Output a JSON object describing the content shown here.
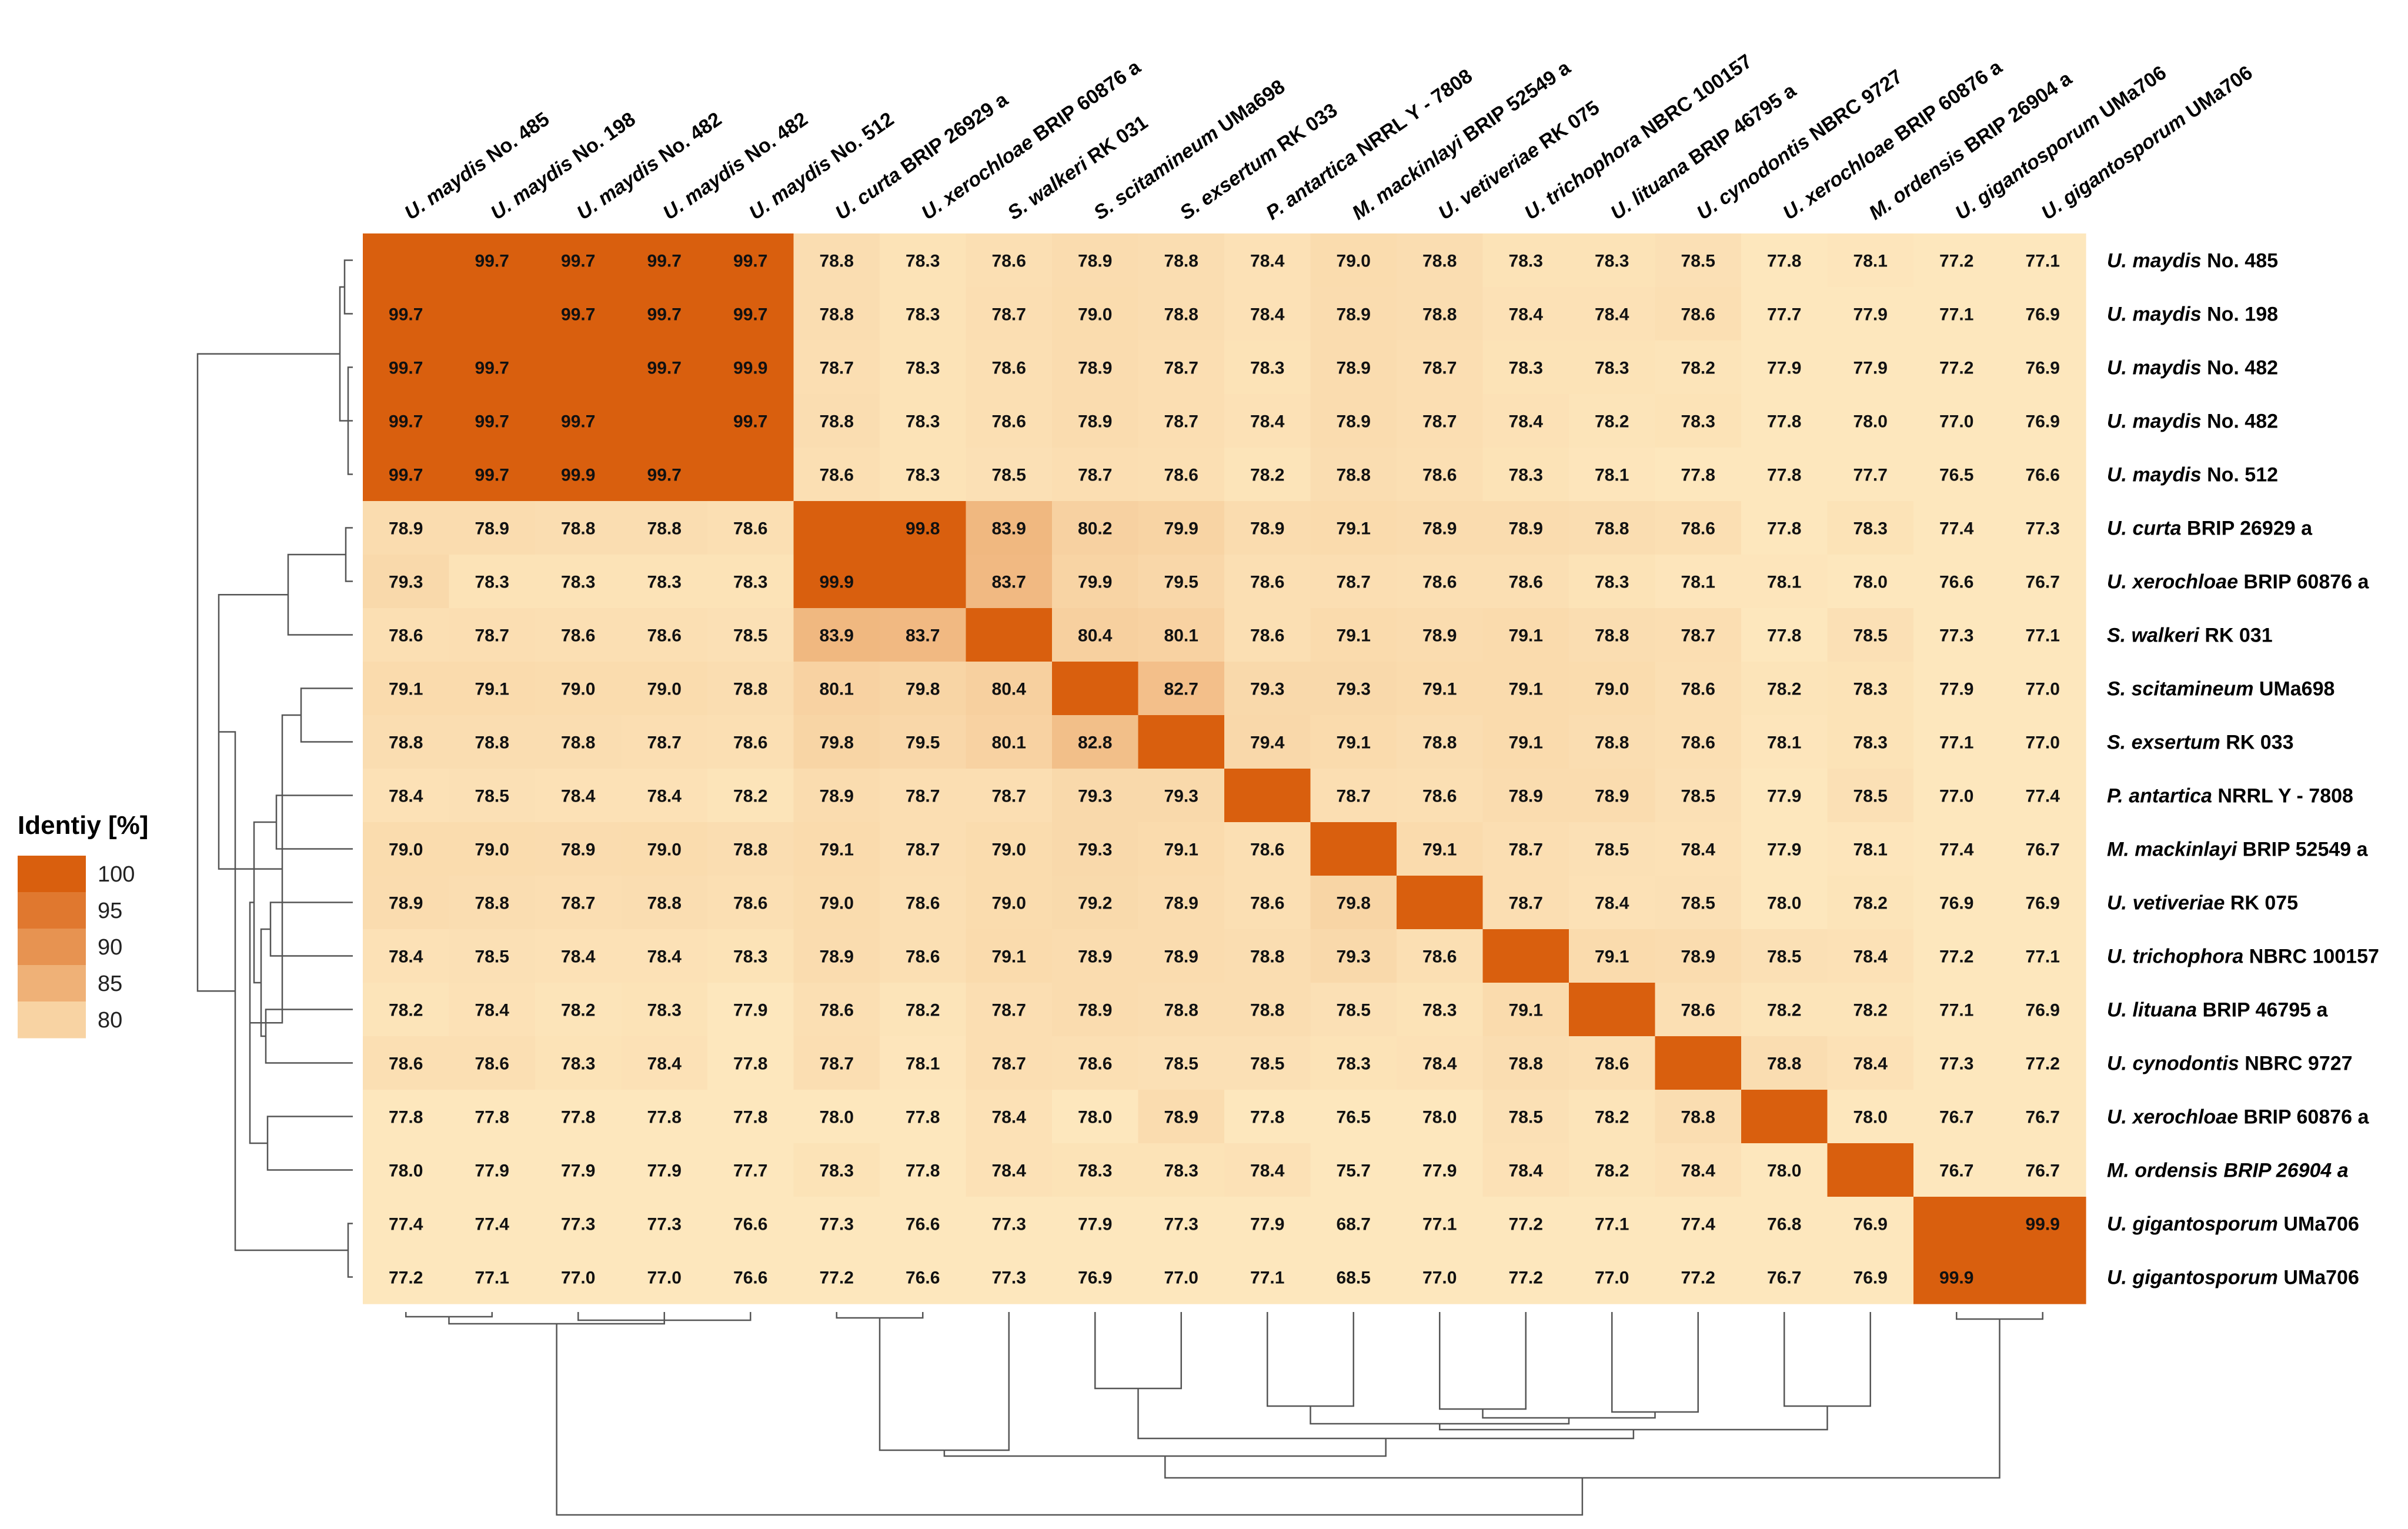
{
  "chart_data": {
    "type": "heatmap",
    "title": "",
    "colors": {
      "low": "#fde7bd",
      "high": "#d95f0e",
      "dendrogram": "#555555"
    },
    "legend": {
      "title": "Identiy [%]",
      "ticks": [
        100,
        95,
        90,
        85,
        80
      ],
      "position": "left"
    },
    "rows": [
      {
        "italic": "U. maydis",
        "rest": " No. 485"
      },
      {
        "italic": "U. maydis",
        "rest": " No. 198"
      },
      {
        "italic": "U. maydis",
        "rest": " No. 482"
      },
      {
        "italic": "U. maydis",
        "rest": " No. 482"
      },
      {
        "italic": "U. maydis",
        "rest": " No. 512"
      },
      {
        "italic": "U. curta",
        "rest": " BRIP 26929 a"
      },
      {
        "italic": "U. xerochloae",
        "rest": " BRIP 60876 a"
      },
      {
        "italic": "S. walkeri",
        "rest": " RK 031"
      },
      {
        "italic": "S. scitamineum",
        "rest": " UMa698"
      },
      {
        "italic": "S. exsertum",
        "rest": " RK 033"
      },
      {
        "italic": "P. antartica",
        "rest": " NRRL Y - 7808"
      },
      {
        "italic": "M. mackinlayi",
        "rest": " BRIP 52549 a"
      },
      {
        "italic": "U. vetiveriae",
        "rest": " RK 075"
      },
      {
        "italic": "U. trichophora",
        "rest": " NBRC 100157"
      },
      {
        "italic": "U. lituana",
        "rest": " BRIP 46795 a"
      },
      {
        "italic": "U. cynodontis",
        "rest": " NBRC 9727"
      },
      {
        "italic": "U. xerochloae",
        "rest": " BRIP 60876 a"
      },
      {
        "italic": "M. ordensis BRIP 26904 a",
        "rest": ""
      },
      {
        "italic": "U. gigantosporum",
        "rest": " UMa706"
      },
      {
        "italic": "U. gigantosporum",
        "rest": " UMa706"
      }
    ],
    "columns": [
      {
        "italic": "U. maydis",
        "rest": " No. 485"
      },
      {
        "italic": "U. maydis",
        "rest": " No. 198"
      },
      {
        "italic": "U. maydis",
        "rest": " No. 482"
      },
      {
        "italic": "U. maydis",
        "rest": " No. 482"
      },
      {
        "italic": "U. maydis",
        "rest": " No. 512"
      },
      {
        "italic": "U. curta",
        "rest": " BRIP 26929 a"
      },
      {
        "italic": "U. xerochloae",
        "rest": " BRIP 60876 a"
      },
      {
        "italic": "S. walkeri",
        "rest": " RK 031"
      },
      {
        "italic": "S. scitamineum",
        "rest": " UMa698"
      },
      {
        "italic": "S. exsertum",
        "rest": " RK 033"
      },
      {
        "italic": "P. antartica",
        "rest": " NRRL Y - 7808"
      },
      {
        "italic": "M. mackinlayi",
        "rest": " BRIP 52549 a"
      },
      {
        "italic": "U. vetiveriae",
        "rest": " RK 075"
      },
      {
        "italic": "U. trichophora",
        "rest": " NBRC 100157"
      },
      {
        "italic": "U. lituana",
        "rest": " BRIP 46795 a"
      },
      {
        "italic": "U. cynodontis",
        "rest": " NBRC 9727"
      },
      {
        "italic": "U. xerochloae",
        "rest": " BRIP 60876 a"
      },
      {
        "italic": "M. ordensis",
        "rest": " BRIP 26904 a"
      },
      {
        "italic": "U. gigantosporum",
        "rest": " UMa706"
      },
      {
        "italic": "U. gigantosporum",
        "rest": " UMa706"
      }
    ],
    "values": [
      [
        null,
        99.7,
        99.7,
        99.7,
        99.7,
        78.8,
        78.3,
        78.6,
        78.9,
        78.8,
        78.4,
        79.0,
        78.8,
        78.3,
        78.3,
        78.5,
        77.8,
        78.1,
        77.2,
        77.1
      ],
      [
        99.7,
        null,
        99.7,
        99.7,
        99.7,
        78.8,
        78.3,
        78.7,
        79.0,
        78.8,
        78.4,
        78.9,
        78.8,
        78.4,
        78.4,
        78.6,
        77.7,
        77.9,
        77.1,
        76.9
      ],
      [
        99.7,
        99.7,
        null,
        99.7,
        99.9,
        78.7,
        78.3,
        78.6,
        78.9,
        78.7,
        78.3,
        78.9,
        78.7,
        78.3,
        78.3,
        78.2,
        77.9,
        77.9,
        77.2,
        76.9
      ],
      [
        99.7,
        99.7,
        99.7,
        null,
        99.7,
        78.8,
        78.3,
        78.6,
        78.9,
        78.7,
        78.4,
        78.9,
        78.7,
        78.4,
        78.2,
        78.3,
        77.8,
        78.0,
        77.0,
        76.9
      ],
      [
        99.7,
        99.7,
        99.9,
        99.7,
        null,
        78.6,
        78.3,
        78.5,
        78.7,
        78.6,
        78.2,
        78.8,
        78.6,
        78.3,
        78.1,
        77.8,
        77.8,
        77.7,
        76.5,
        76.6
      ],
      [
        78.9,
        78.9,
        78.8,
        78.8,
        78.6,
        null,
        99.8,
        83.9,
        80.2,
        79.9,
        78.9,
        79.1,
        78.9,
        78.9,
        78.8,
        78.6,
        77.8,
        78.3,
        77.4,
        77.3
      ],
      [
        79.3,
        78.3,
        78.3,
        78.3,
        78.3,
        99.9,
        null,
        83.7,
        79.9,
        79.5,
        78.6,
        78.7,
        78.6,
        78.6,
        78.3,
        78.1,
        78.1,
        78.0,
        76.6,
        76.7
      ],
      [
        78.6,
        78.7,
        78.6,
        78.6,
        78.5,
        83.9,
        83.7,
        null,
        80.4,
        80.1,
        78.6,
        79.1,
        78.9,
        79.1,
        78.8,
        78.7,
        77.8,
        78.5,
        77.3,
        77.1
      ],
      [
        79.1,
        79.1,
        79.0,
        79.0,
        78.8,
        80.1,
        79.8,
        80.4,
        null,
        82.7,
        79.3,
        79.3,
        79.1,
        79.1,
        79.0,
        78.6,
        78.2,
        78.3,
        77.9,
        77.0
      ],
      [
        78.8,
        78.8,
        78.8,
        78.7,
        78.6,
        79.8,
        79.5,
        80.1,
        82.8,
        null,
        79.4,
        79.1,
        78.8,
        79.1,
        78.8,
        78.6,
        78.1,
        78.3,
        77.1,
        77.0
      ],
      [
        78.4,
        78.5,
        78.4,
        78.4,
        78.2,
        78.9,
        78.7,
        78.7,
        79.3,
        79.3,
        null,
        78.7,
        78.6,
        78.9,
        78.9,
        78.5,
        77.9,
        78.5,
        77.0,
        77.4
      ],
      [
        79.0,
        79.0,
        78.9,
        79.0,
        78.8,
        79.1,
        78.7,
        79.0,
        79.3,
        79.1,
        78.6,
        null,
        79.1,
        78.7,
        78.5,
        78.4,
        77.9,
        78.1,
        77.4,
        76.7
      ],
      [
        78.9,
        78.8,
        78.7,
        78.8,
        78.6,
        79.0,
        78.6,
        79.0,
        79.2,
        78.9,
        78.6,
        79.8,
        null,
        78.7,
        78.4,
        78.5,
        78.0,
        78.2,
        76.9,
        76.9
      ],
      [
        78.4,
        78.5,
        78.4,
        78.4,
        78.3,
        78.9,
        78.6,
        79.1,
        78.9,
        78.9,
        78.8,
        79.3,
        78.6,
        null,
        79.1,
        78.9,
        78.5,
        78.4,
        77.2,
        77.1
      ],
      [
        78.2,
        78.4,
        78.2,
        78.3,
        77.9,
        78.6,
        78.2,
        78.7,
        78.9,
        78.8,
        78.8,
        78.5,
        78.3,
        79.1,
        null,
        78.6,
        78.2,
        78.2,
        77.1,
        76.9
      ],
      [
        78.6,
        78.6,
        78.3,
        78.4,
        77.8,
        78.7,
        78.1,
        78.7,
        78.6,
        78.5,
        78.5,
        78.3,
        78.4,
        78.8,
        78.6,
        null,
        78.8,
        78.4,
        77.3,
        77.2
      ],
      [
        77.8,
        77.8,
        77.8,
        77.8,
        77.8,
        78.0,
        77.8,
        78.4,
        78.0,
        78.9,
        77.8,
        76.5,
        78.0,
        78.5,
        78.2,
        78.8,
        null,
        78.0,
        76.7,
        76.7
      ],
      [
        78.0,
        77.9,
        77.9,
        77.9,
        77.7,
        78.3,
        77.8,
        78.4,
        78.3,
        78.3,
        78.4,
        75.7,
        77.9,
        78.4,
        78.2,
        78.4,
        78.0,
        null,
        76.7,
        76.7
      ],
      [
        77.4,
        77.4,
        77.3,
        77.3,
        76.6,
        77.3,
        76.6,
        77.3,
        77.9,
        77.3,
        77.9,
        68.7,
        77.1,
        77.2,
        77.1,
        77.4,
        76.8,
        76.9,
        null,
        99.9
      ],
      [
        77.2,
        77.1,
        77.0,
        77.0,
        76.6,
        77.2,
        76.6,
        77.3,
        76.9,
        77.0,
        77.1,
        68.5,
        77.0,
        77.2,
        77.0,
        77.2,
        76.7,
        76.9,
        99.9,
        null
      ]
    ]
  }
}
